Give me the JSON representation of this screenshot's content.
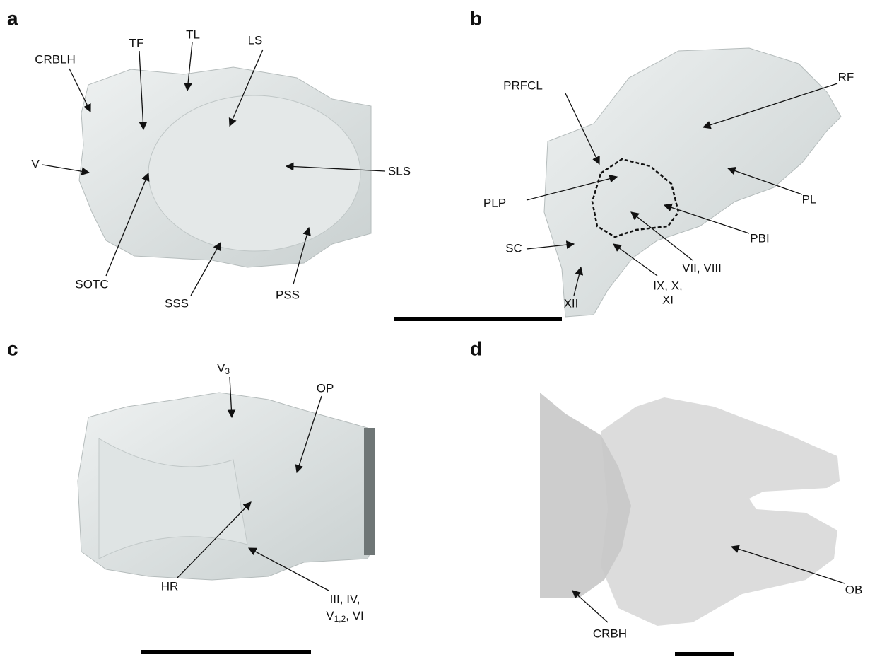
{
  "panels": [
    {
      "letter": "a",
      "labels": [
        "CRBLH",
        "TF",
        "TL",
        "LS",
        "V",
        "SLS",
        "SOTC",
        "SSS",
        "PSS"
      ]
    },
    {
      "letter": "b",
      "labels": [
        "PRFCL",
        "RF",
        "PLP",
        "PL",
        "PBI",
        "SC",
        "VII, VIII",
        "IX, X,",
        "XI",
        "XII"
      ]
    },
    {
      "letter": "c",
      "labels": [
        {
          "main": "V",
          "sub": "3"
        },
        "OP",
        "HR",
        "III, IV,",
        {
          "main": "V",
          "sub": "1,2",
          "rest": ", VI"
        }
      ]
    },
    {
      "letter": "d",
      "labels": [
        "CRBH",
        "OB"
      ]
    }
  ]
}
